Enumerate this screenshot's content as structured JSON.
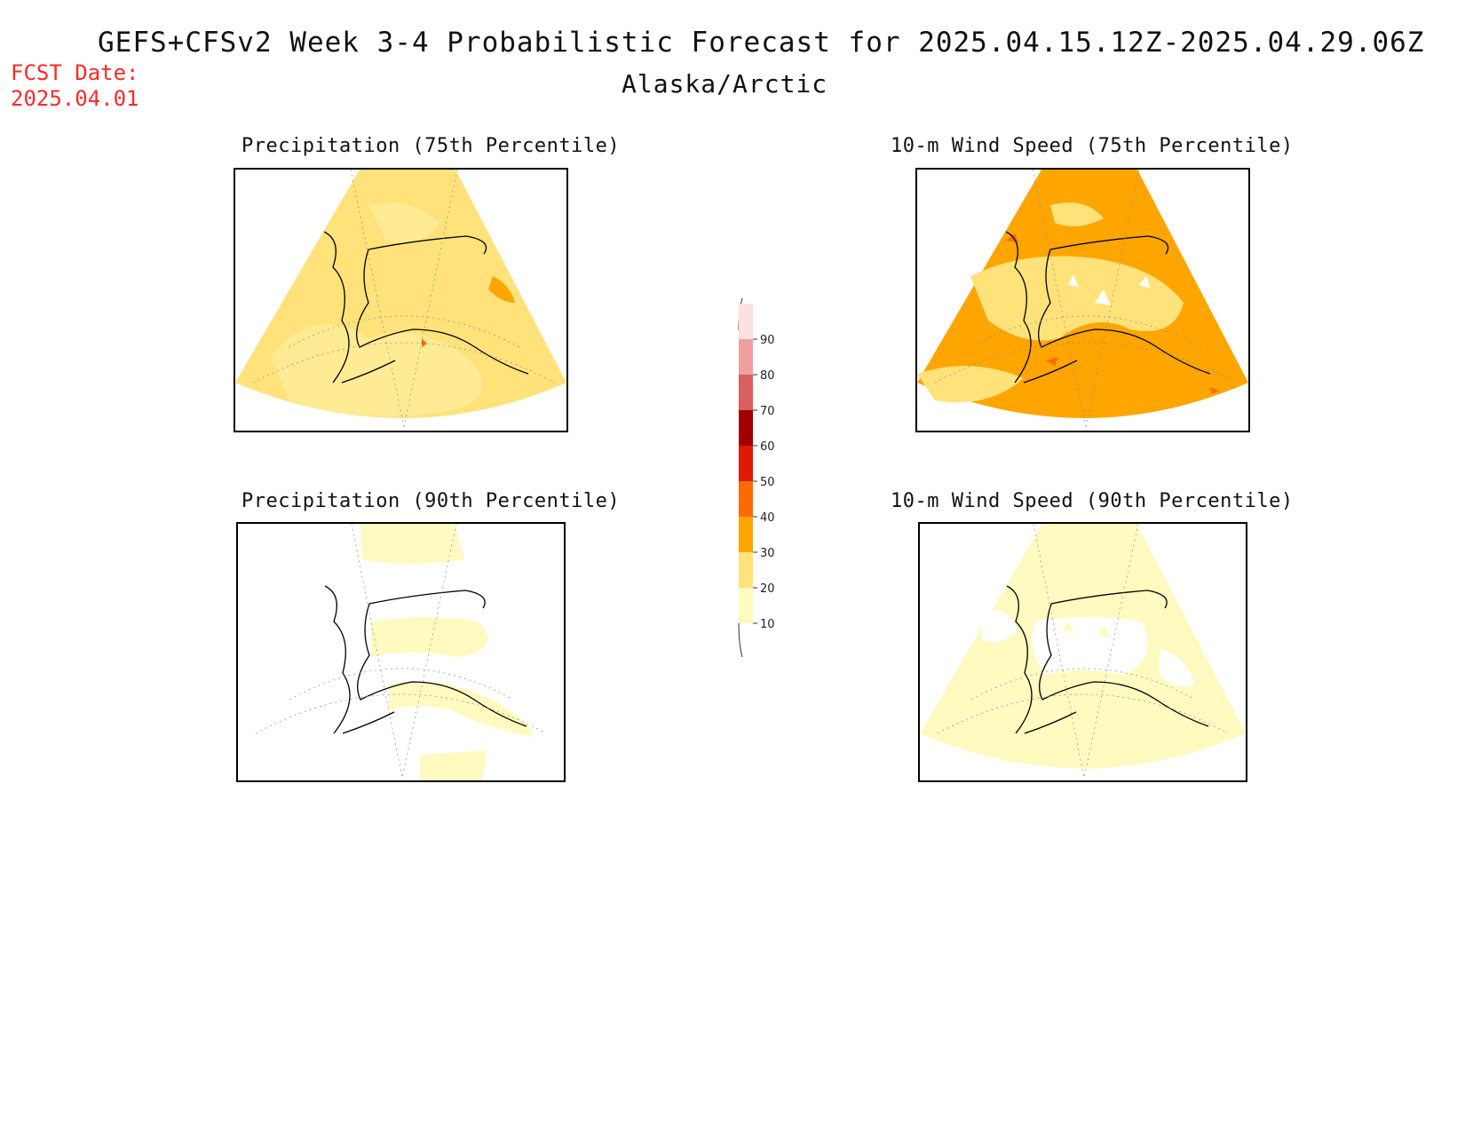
{
  "header": {
    "title": "GEFS+CFSv2 Week 3-4 Probabilistic Forecast for 2025.04.15.12Z-2025.04.29.06Z",
    "region": "Alaska/Arctic",
    "fcst_label": "FCST Date:",
    "fcst_date": "2025.04.01"
  },
  "panels": [
    {
      "title": "Precipitation (75th Percentile)",
      "fill_level": "20-30"
    },
    {
      "title": "10-m Wind Speed (75th Percentile)",
      "fill_level": "30-40"
    },
    {
      "title": "Precipitation (90th Percentile)",
      "fill_level": "10-20"
    },
    {
      "title": "10-m Wind Speed (90th Percentile)",
      "fill_level": "10-20"
    }
  ],
  "colorbar": {
    "labels": [
      "10",
      "20",
      "30",
      "40",
      "50",
      "60",
      "70",
      "80",
      "90"
    ],
    "colors": [
      "#fffac0",
      "#ffe27a",
      "#ffa500",
      "#ff6a00",
      "#e01a00",
      "#a00000",
      "#d86060",
      "#f0a0a0",
      "#fde0e0"
    ]
  }
}
